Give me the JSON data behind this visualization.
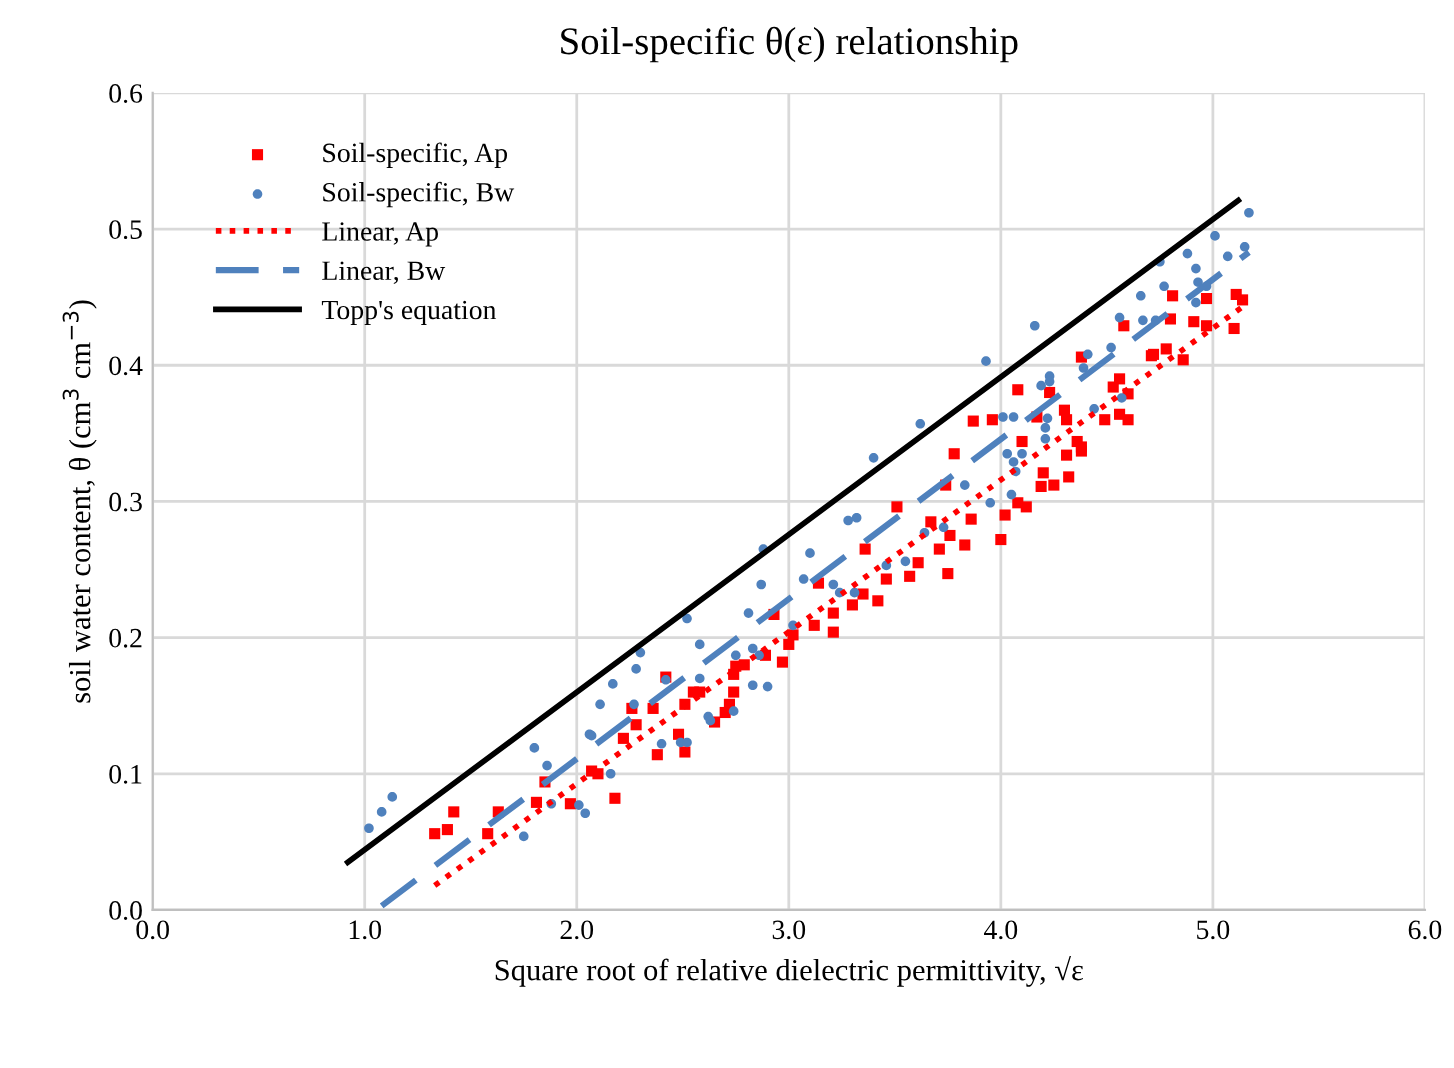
{
  "chart_data": {
    "type": "scatter",
    "title": "Soil-specific θ(ε) relationship",
    "xlabel": "Square root of relative dielectric permittivity, √ε",
    "ylabel": "soil water content, θ (cm$^{3}$ cm$^{−3}$)",
    "xlim": [
      0,
      6
    ],
    "ylim": [
      0,
      0.6
    ],
    "xticks": [
      {
        "value": 0,
        "label": "0.0"
      },
      {
        "value": 1,
        "label": "1.0"
      },
      {
        "value": 2,
        "label": "2.0"
      },
      {
        "value": 3,
        "label": "3.0"
      },
      {
        "value": 4,
        "label": "4.0"
      },
      {
        "value": 5,
        "label": "5.0"
      },
      {
        "value": 6,
        "label": "6.0"
      }
    ],
    "yticks": [
      {
        "value": 0,
        "label": "0.0"
      },
      {
        "value": 0.1,
        "label": "0.1"
      },
      {
        "value": 0.2,
        "label": "0.2"
      },
      {
        "value": 0.3,
        "label": "0.3"
      },
      {
        "value": 0.4,
        "label": "0.4"
      },
      {
        "value": 0.5,
        "label": "0.5"
      },
      {
        "value": 0.6,
        "label": "0.6"
      }
    ],
    "grid": true,
    "legend": "top left",
    "series": [
      {
        "name": "Soil-specific, Ap",
        "marker": "square",
        "color": "#ff0000",
        "x": [
          1.33,
          1.39,
          1.42,
          1.63,
          1.58,
          1.85,
          1.81,
          1.97,
          2.07,
          2.1,
          2.18,
          2.42,
          2.26,
          2.36,
          2.28,
          2.22,
          2.38,
          2.48,
          2.51,
          2.51,
          2.55,
          2.58,
          2.65,
          2.7,
          2.72,
          2.74,
          2.74,
          2.75,
          2.79,
          2.89,
          2.93,
          2.97,
          3.0,
          3.02,
          3.12,
          3.14,
          3.21,
          3.21,
          3.3,
          3.35,
          3.42,
          3.36,
          3.46,
          3.51,
          3.57,
          3.61,
          3.67,
          3.71,
          3.75,
          3.76,
          3.83,
          3.86,
          3.78,
          3.87,
          3.74,
          3.96,
          4.0,
          4.02,
          4.08,
          4.08,
          4.1,
          4.12,
          4.17,
          4.19,
          4.2,
          4.23,
          4.25,
          4.3,
          4.31,
          4.31,
          4.32,
          4.36,
          4.38,
          4.38,
          4.38,
          4.49,
          4.53,
          4.56,
          4.56,
          4.6,
          4.6,
          4.58,
          4.71,
          4.72,
          4.78,
          4.8,
          4.81,
          4.86,
          4.91,
          4.97,
          4.97,
          5.1,
          5.11,
          5.14
        ],
        "values": [
          0.056,
          0.059,
          0.072,
          0.072,
          0.056,
          0.094,
          0.079,
          0.078,
          0.102,
          0.1,
          0.082,
          0.171,
          0.148,
          0.148,
          0.136,
          0.126,
          0.114,
          0.129,
          0.116,
          0.151,
          0.16,
          0.16,
          0.138,
          0.145,
          0.151,
          0.16,
          0.173,
          0.179,
          0.18,
          0.187,
          0.217,
          0.182,
          0.195,
          0.202,
          0.209,
          0.24,
          0.204,
          0.218,
          0.224,
          0.232,
          0.227,
          0.265,
          0.243,
          0.296,
          0.245,
          0.255,
          0.285,
          0.265,
          0.247,
          0.275,
          0.268,
          0.287,
          0.335,
          0.359,
          0.312,
          0.36,
          0.272,
          0.29,
          0.382,
          0.299,
          0.344,
          0.296,
          0.362,
          0.311,
          0.321,
          0.38,
          0.312,
          0.367,
          0.36,
          0.334,
          0.318,
          0.344,
          0.337,
          0.34,
          0.406,
          0.36,
          0.384,
          0.39,
          0.364,
          0.36,
          0.379,
          0.429,
          0.407,
          0.408,
          0.412,
          0.434,
          0.451,
          0.404,
          0.432,
          0.429,
          0.449,
          0.427,
          0.452,
          0.448
        ]
      },
      {
        "name": "Soil-specific, Bw",
        "marker": "circle",
        "color": "#4f81bd",
        "x": [
          1.02,
          1.08,
          1.13,
          1.75,
          1.8,
          1.86,
          1.88,
          2.01,
          2.04,
          2.07,
          2.11,
          2.16,
          2.17,
          2.06,
          2.28,
          2.27,
          2.3,
          2.4,
          2.42,
          2.52,
          2.49,
          2.52,
          2.58,
          2.58,
          2.62,
          2.63,
          2.74,
          2.75,
          2.81,
          2.83,
          2.83,
          2.86,
          2.87,
          2.88,
          2.9,
          3.02,
          3.07,
          3.1,
          3.21,
          3.24,
          3.28,
          3.32,
          3.31,
          3.4,
          3.46,
          3.55,
          3.62,
          3.64,
          3.73,
          3.83,
          3.95,
          3.93,
          4.01,
          4.06,
          4.03,
          4.06,
          4.07,
          4.1,
          4.05,
          4.16,
          4.19,
          4.23,
          4.23,
          4.22,
          4.21,
          4.21,
          4.39,
          4.41,
          4.44,
          4.52,
          4.56,
          4.57,
          4.66,
          4.67,
          4.73,
          4.75,
          4.77,
          4.88,
          4.92,
          4.93,
          4.92,
          4.97,
          5.01,
          5.07,
          5.15,
          5.17
        ],
        "values": [
          0.06,
          0.072,
          0.083,
          0.054,
          0.119,
          0.106,
          0.078,
          0.077,
          0.071,
          0.128,
          0.151,
          0.1,
          0.166,
          0.129,
          0.177,
          0.151,
          0.189,
          0.122,
          0.169,
          0.214,
          0.123,
          0.123,
          0.195,
          0.17,
          0.142,
          0.139,
          0.146,
          0.187,
          0.218,
          0.192,
          0.165,
          0.187,
          0.239,
          0.265,
          0.164,
          0.209,
          0.243,
          0.262,
          0.239,
          0.233,
          0.286,
          0.288,
          0.233,
          0.332,
          0.253,
          0.256,
          0.357,
          0.277,
          0.281,
          0.312,
          0.299,
          0.403,
          0.362,
          0.362,
          0.335,
          0.329,
          0.322,
          0.335,
          0.305,
          0.429,
          0.385,
          0.392,
          0.388,
          0.361,
          0.354,
          0.346,
          0.398,
          0.408,
          0.368,
          0.413,
          0.435,
          0.376,
          0.451,
          0.433,
          0.433,
          0.476,
          0.458,
          0.482,
          0.471,
          0.461,
          0.446,
          0.458,
          0.495,
          0.48,
          0.487,
          0.512
        ]
      },
      {
        "name": "Linear, Ap",
        "type": "line",
        "line_style": "dotted",
        "color": "#ff0000",
        "x": [
          1.33,
          5.15
        ],
        "values": [
          0.018,
          0.444
        ]
      },
      {
        "name": "Linear, Bw",
        "type": "line",
        "line_style": "dashed",
        "color": "#4f81bd",
        "x": [
          1.08,
          5.17
        ],
        "values": [
          0.003,
          0.483
        ]
      },
      {
        "name": "Topp's equation",
        "type": "line",
        "line_style": "solid",
        "color": "#000000",
        "x": [
          0.92,
          5.12
        ],
        "values": [
          0.035,
          0.521
        ]
      }
    ]
  }
}
